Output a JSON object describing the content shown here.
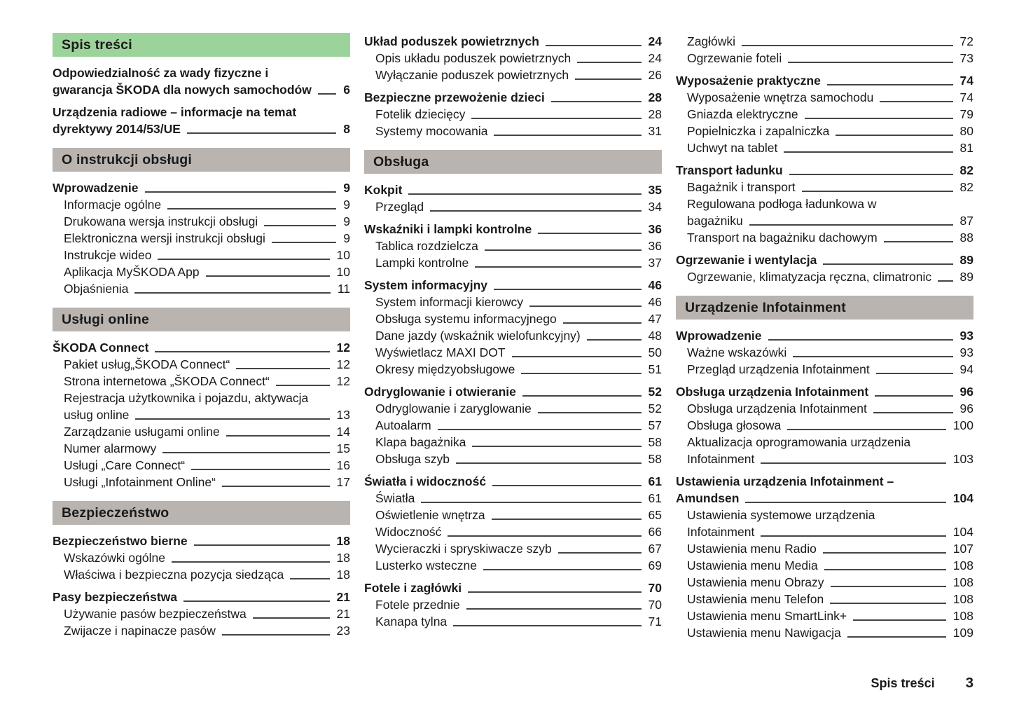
{
  "footer": {
    "label": "Spis treści",
    "page_number": "3"
  },
  "colors": {
    "section_green": "#9cd39b",
    "section_gray": "#b9b4b0",
    "text": "#1a1a1a",
    "leader_line": "#454545"
  },
  "columns": [
    {
      "blocks": [
        {
          "type": "header",
          "variant": "green",
          "label": "Spis treści"
        },
        {
          "type": "entry",
          "bold": true,
          "indent": false,
          "lines": [
            "Odpowiedzialność za wady fizyczne i",
            "gwarancja ŠKODA dla nowych samochodów"
          ],
          "page": "6"
        },
        {
          "type": "entry",
          "bold": true,
          "indent": false,
          "lines": [
            "Urządzenia radiowe – informacje na temat",
            "dyrektywy 2014/53/UE"
          ],
          "page": "8"
        },
        {
          "type": "header",
          "variant": "gray",
          "label": "O instrukcji obsługi"
        },
        {
          "type": "entry",
          "bold": true,
          "indent": false,
          "lines": [
            "Wprowadzenie"
          ],
          "page": "9"
        },
        {
          "type": "entry",
          "bold": false,
          "indent": true,
          "lines": [
            "Informacje ogólne"
          ],
          "page": "9"
        },
        {
          "type": "entry",
          "bold": false,
          "indent": true,
          "lines": [
            "Drukowana wersja instrukcji obsługi"
          ],
          "page": "9"
        },
        {
          "type": "entry",
          "bold": false,
          "indent": true,
          "lines": [
            "Elektroniczna wersji instrukcji obsługi"
          ],
          "page": "9"
        },
        {
          "type": "entry",
          "bold": false,
          "indent": true,
          "lines": [
            "Instrukcje wideo"
          ],
          "page": "10"
        },
        {
          "type": "entry",
          "bold": false,
          "indent": true,
          "lines": [
            "Aplikacja MyŠKODA App"
          ],
          "page": "10"
        },
        {
          "type": "entry",
          "bold": false,
          "indent": true,
          "lines": [
            "Objaśnienia"
          ],
          "page": "11"
        },
        {
          "type": "header",
          "variant": "gray",
          "label": "Usługi online"
        },
        {
          "type": "entry",
          "bold": true,
          "indent": false,
          "lines": [
            "ŠKODA Connect"
          ],
          "page": "12"
        },
        {
          "type": "entry",
          "bold": false,
          "indent": true,
          "lines": [
            "Pakiet usług„ŠKODA Connect“"
          ],
          "page": "12"
        },
        {
          "type": "entry",
          "bold": false,
          "indent": true,
          "lines": [
            "Strona internetowa „ŠKODA Connect“"
          ],
          "page": "12"
        },
        {
          "type": "entry",
          "bold": false,
          "indent": true,
          "lines": [
            "Rejestracja użytkownika i pojazdu, aktywacja",
            "usług online"
          ],
          "page": "13"
        },
        {
          "type": "entry",
          "bold": false,
          "indent": true,
          "lines": [
            "Zarządzanie usługami online"
          ],
          "page": "14"
        },
        {
          "type": "entry",
          "bold": false,
          "indent": true,
          "lines": [
            "Numer alarmowy"
          ],
          "page": "15"
        },
        {
          "type": "entry",
          "bold": false,
          "indent": true,
          "lines": [
            "Usługi „Care Connect“"
          ],
          "page": "16"
        },
        {
          "type": "entry",
          "bold": false,
          "indent": true,
          "lines": [
            "Usługi „Infotainment Online“"
          ],
          "page": "17"
        },
        {
          "type": "header",
          "variant": "gray",
          "label": "Bezpieczeństwo"
        },
        {
          "type": "entry",
          "bold": true,
          "indent": false,
          "lines": [
            "Bezpieczeństwo bierne"
          ],
          "page": "18"
        },
        {
          "type": "entry",
          "bold": false,
          "indent": true,
          "lines": [
            "Wskazówki ogólne"
          ],
          "page": "18"
        },
        {
          "type": "entry",
          "bold": false,
          "indent": true,
          "lines": [
            "Właściwa i bezpieczna pozycja siedząca"
          ],
          "page": "18"
        },
        {
          "type": "entry",
          "bold": true,
          "indent": false,
          "lines": [
            "Pasy bezpieczeństwa"
          ],
          "page": "21"
        },
        {
          "type": "entry",
          "bold": false,
          "indent": true,
          "lines": [
            "Używanie pasów bezpieczeństwa"
          ],
          "page": "21"
        },
        {
          "type": "entry",
          "bold": false,
          "indent": true,
          "lines": [
            "Zwijacze i napinacze pasów"
          ],
          "page": "23"
        }
      ]
    },
    {
      "blocks": [
        {
          "type": "entry",
          "bold": true,
          "indent": false,
          "lines": [
            "Układ poduszek powietrznych"
          ],
          "page": "24"
        },
        {
          "type": "entry",
          "bold": false,
          "indent": true,
          "lines": [
            "Opis układu poduszek powietrznych"
          ],
          "page": "24"
        },
        {
          "type": "entry",
          "bold": false,
          "indent": true,
          "lines": [
            "Wyłączanie poduszek powietrznych"
          ],
          "page": "26"
        },
        {
          "type": "entry",
          "bold": true,
          "indent": false,
          "lines": [
            "Bezpieczne przewożenie dzieci"
          ],
          "page": "28"
        },
        {
          "type": "entry",
          "bold": false,
          "indent": true,
          "lines": [
            "Fotelik dziecięcy"
          ],
          "page": "28"
        },
        {
          "type": "entry",
          "bold": false,
          "indent": true,
          "lines": [
            "Systemy mocowania"
          ],
          "page": "31"
        },
        {
          "type": "header",
          "variant": "gray",
          "label": "Obsługa"
        },
        {
          "type": "entry",
          "bold": true,
          "indent": false,
          "lines": [
            "Kokpit"
          ],
          "page": "35"
        },
        {
          "type": "entry",
          "bold": false,
          "indent": true,
          "lines": [
            "Przegląd"
          ],
          "page": "34"
        },
        {
          "type": "entry",
          "bold": true,
          "indent": false,
          "lines": [
            "Wskaźniki i lampki kontrolne"
          ],
          "page": "36"
        },
        {
          "type": "entry",
          "bold": false,
          "indent": true,
          "lines": [
            "Tablica rozdzielcza"
          ],
          "page": "36"
        },
        {
          "type": "entry",
          "bold": false,
          "indent": true,
          "lines": [
            "Lampki kontrolne"
          ],
          "page": "37"
        },
        {
          "type": "entry",
          "bold": true,
          "indent": false,
          "lines": [
            "System informacyjny"
          ],
          "page": "46"
        },
        {
          "type": "entry",
          "bold": false,
          "indent": true,
          "lines": [
            "System informacji kierowcy"
          ],
          "page": "46"
        },
        {
          "type": "entry",
          "bold": false,
          "indent": true,
          "lines": [
            "Obsługa systemu informacyjnego"
          ],
          "page": "47"
        },
        {
          "type": "entry",
          "bold": false,
          "indent": true,
          "lines": [
            "Dane jazdy (wskaźnik wielofunkcyjny)"
          ],
          "page": "48"
        },
        {
          "type": "entry",
          "bold": false,
          "indent": true,
          "lines": [
            "Wyświetlacz MAXI DOT"
          ],
          "page": "50"
        },
        {
          "type": "entry",
          "bold": false,
          "indent": true,
          "lines": [
            "Okresy międzyobsługowe"
          ],
          "page": "51"
        },
        {
          "type": "entry",
          "bold": true,
          "indent": false,
          "lines": [
            "Odryglowanie i otwieranie"
          ],
          "page": "52"
        },
        {
          "type": "entry",
          "bold": false,
          "indent": true,
          "lines": [
            "Odryglowanie i zaryglowanie"
          ],
          "page": "52"
        },
        {
          "type": "entry",
          "bold": false,
          "indent": true,
          "lines": [
            "Autoalarm"
          ],
          "page": "57"
        },
        {
          "type": "entry",
          "bold": false,
          "indent": true,
          "lines": [
            "Klapa bagażnika"
          ],
          "page": "58"
        },
        {
          "type": "entry",
          "bold": false,
          "indent": true,
          "lines": [
            "Obsługa szyb"
          ],
          "page": "58"
        },
        {
          "type": "entry",
          "bold": true,
          "indent": false,
          "lines": [
            "Światła i widoczność"
          ],
          "page": "61"
        },
        {
          "type": "entry",
          "bold": false,
          "indent": true,
          "lines": [
            "Światła"
          ],
          "page": "61"
        },
        {
          "type": "entry",
          "bold": false,
          "indent": true,
          "lines": [
            "Oświetlenie wnętrza"
          ],
          "page": "65"
        },
        {
          "type": "entry",
          "bold": false,
          "indent": true,
          "lines": [
            "Widoczność"
          ],
          "page": "66"
        },
        {
          "type": "entry",
          "bold": false,
          "indent": true,
          "lines": [
            "Wycieraczki i spryskiwacze szyb"
          ],
          "page": "67"
        },
        {
          "type": "entry",
          "bold": false,
          "indent": true,
          "lines": [
            "Lusterko wsteczne"
          ],
          "page": "69"
        },
        {
          "type": "entry",
          "bold": true,
          "indent": false,
          "lines": [
            "Fotele i zagłówki"
          ],
          "page": "70"
        },
        {
          "type": "entry",
          "bold": false,
          "indent": true,
          "lines": [
            "Fotele przednie"
          ],
          "page": "70"
        },
        {
          "type": "entry",
          "bold": false,
          "indent": true,
          "lines": [
            "Kanapa tylna"
          ],
          "page": "71"
        }
      ]
    },
    {
      "blocks": [
        {
          "type": "entry",
          "bold": false,
          "indent": true,
          "lines": [
            "Zagłówki"
          ],
          "page": "72"
        },
        {
          "type": "entry",
          "bold": false,
          "indent": true,
          "lines": [
            "Ogrzewanie foteli"
          ],
          "page": "73"
        },
        {
          "type": "entry",
          "bold": true,
          "indent": false,
          "lines": [
            "Wyposażenie praktyczne"
          ],
          "page": "74"
        },
        {
          "type": "entry",
          "bold": false,
          "indent": true,
          "lines": [
            "Wyposażenie wnętrza samochodu"
          ],
          "page": "74"
        },
        {
          "type": "entry",
          "bold": false,
          "indent": true,
          "lines": [
            "Gniazda elektryczne"
          ],
          "page": "79"
        },
        {
          "type": "entry",
          "bold": false,
          "indent": true,
          "lines": [
            "Popielniczka i zapalniczka"
          ],
          "page": "80"
        },
        {
          "type": "entry",
          "bold": false,
          "indent": true,
          "lines": [
            "Uchwyt na tablet"
          ],
          "page": "81"
        },
        {
          "type": "entry",
          "bold": true,
          "indent": false,
          "lines": [
            "Transport ładunku"
          ],
          "page": "82"
        },
        {
          "type": "entry",
          "bold": false,
          "indent": true,
          "lines": [
            "Bagażnik i transport"
          ],
          "page": "82"
        },
        {
          "type": "entry",
          "bold": false,
          "indent": true,
          "lines": [
            "Regulowana podłoga ładunkowa w",
            "bagażniku"
          ],
          "page": "87"
        },
        {
          "type": "entry",
          "bold": false,
          "indent": true,
          "lines": [
            "Transport na bagażniku dachowym"
          ],
          "page": "88"
        },
        {
          "type": "entry",
          "bold": true,
          "indent": false,
          "lines": [
            "Ogrzewanie i wentylacja"
          ],
          "page": "89"
        },
        {
          "type": "entry",
          "bold": false,
          "indent": true,
          "lines": [
            "Ogrzewanie, klimatyzacja ręczna, climatronic"
          ],
          "page": "89"
        },
        {
          "type": "header",
          "variant": "gray",
          "label": "Urządzenie Infotainment"
        },
        {
          "type": "entry",
          "bold": true,
          "indent": false,
          "lines": [
            "Wprowadzenie"
          ],
          "page": "93"
        },
        {
          "type": "entry",
          "bold": false,
          "indent": true,
          "lines": [
            "Ważne wskazówki"
          ],
          "page": "93"
        },
        {
          "type": "entry",
          "bold": false,
          "indent": true,
          "lines": [
            "Przegląd urządzenia Infotainment"
          ],
          "page": "94"
        },
        {
          "type": "entry",
          "bold": true,
          "indent": false,
          "lines": [
            "Obsługa urządzenia Infotainment"
          ],
          "page": "96"
        },
        {
          "type": "entry",
          "bold": false,
          "indent": true,
          "lines": [
            "Obsługa urządzenia Infotainment"
          ],
          "page": "96"
        },
        {
          "type": "entry",
          "bold": false,
          "indent": true,
          "lines": [
            "Obsługa głosowa"
          ],
          "page": "100"
        },
        {
          "type": "entry",
          "bold": false,
          "indent": true,
          "lines": [
            "Aktualizacja oprogramowania urządzenia",
            "Infotainment"
          ],
          "page": "103"
        },
        {
          "type": "entry",
          "bold": true,
          "indent": false,
          "lines": [
            "Ustawienia urządzenia Infotainment –",
            "Amundsen"
          ],
          "page": "104"
        },
        {
          "type": "entry",
          "bold": false,
          "indent": true,
          "lines": [
            "Ustawienia systemowe urządzenia",
            "Infotainment"
          ],
          "page": "104"
        },
        {
          "type": "entry",
          "bold": false,
          "indent": true,
          "lines": [
            "Ustawienia menu Radio"
          ],
          "page": "107"
        },
        {
          "type": "entry",
          "bold": false,
          "indent": true,
          "lines": [
            "Ustawienia menu Media"
          ],
          "page": "108"
        },
        {
          "type": "entry",
          "bold": false,
          "indent": true,
          "lines": [
            "Ustawienia menu Obrazy"
          ],
          "page": "108"
        },
        {
          "type": "entry",
          "bold": false,
          "indent": true,
          "lines": [
            "Ustawienia menu Telefon"
          ],
          "page": "108"
        },
        {
          "type": "entry",
          "bold": false,
          "indent": true,
          "lines": [
            "Ustawienia menu SmartLink+"
          ],
          "page": "108"
        },
        {
          "type": "entry",
          "bold": false,
          "indent": true,
          "lines": [
            "Ustawienia menu Nawigacja"
          ],
          "page": "109"
        }
      ]
    }
  ]
}
